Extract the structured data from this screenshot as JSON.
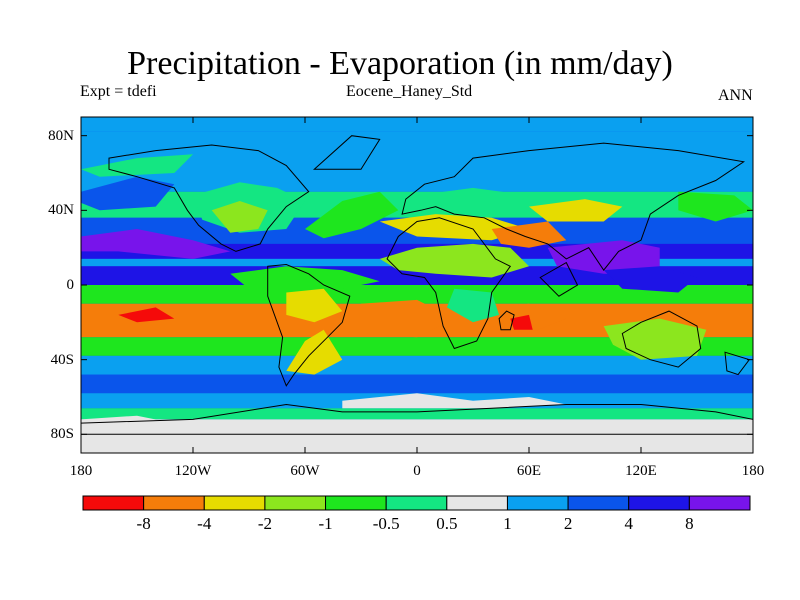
{
  "header": {
    "title": "Precipitation - Evaporation (in mm/day)",
    "left_label": "Expt = tdefi",
    "center_label": "Eocene_Haney_Std",
    "right_label": "ANN"
  },
  "chart_data": {
    "type": "heatmap",
    "variable": "Precipitation - Evaporation",
    "units": "mm/day",
    "period": "ANN",
    "xlim": [
      -180,
      180
    ],
    "ylim": [
      -90,
      90
    ],
    "x_ticks": [
      {
        "value": -180,
        "label": "180"
      },
      {
        "value": -120,
        "label": "120W"
      },
      {
        "value": -60,
        "label": "60W"
      },
      {
        "value": 0,
        "label": "0"
      },
      {
        "value": 60,
        "label": "60E"
      },
      {
        "value": 120,
        "label": "120E"
      },
      {
        "value": 180,
        "label": "180"
      }
    ],
    "y_ticks": [
      {
        "value": 80,
        "label": "80N"
      },
      {
        "value": 40,
        "label": "40N"
      },
      {
        "value": 0,
        "label": "0"
      },
      {
        "value": -40,
        "label": "40S"
      },
      {
        "value": -80,
        "label": "80S"
      }
    ],
    "colorbar": {
      "colors": [
        "#f50a0a",
        "#f57d0a",
        "#e6dc00",
        "#8ce61e",
        "#1ee61e",
        "#14e682",
        "#e6e6e6",
        "#0aa0f0",
        "#0a55eb",
        "#1e14e6",
        "#7814eb"
      ],
      "levels": [
        "-8",
        "-4",
        "-2",
        "-1",
        "-0.5",
        "0.5",
        "1",
        "2",
        "4",
        "8"
      ]
    }
  }
}
